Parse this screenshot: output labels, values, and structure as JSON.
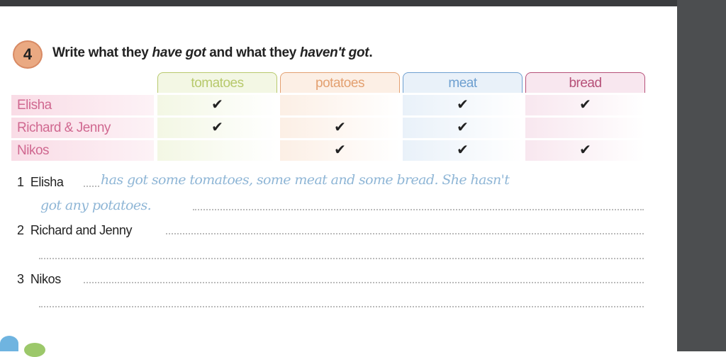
{
  "exercise": {
    "number": "4",
    "title_parts": [
      "Write what they ",
      "have got",
      " and what they ",
      "haven't got",
      "."
    ]
  },
  "table": {
    "columns": [
      {
        "label": "tomatoes",
        "color": "#b7c96c",
        "bg": "#f3f7e4"
      },
      {
        "label": "potatoes",
        "color": "#e3a070",
        "bg": "#fcefe5"
      },
      {
        "label": "meat",
        "color": "#6d9fd0",
        "bg": "#e9f1f9"
      },
      {
        "label": "bread",
        "color": "#b65078",
        "bg": "#f8e7ef"
      }
    ],
    "rows": [
      {
        "name": "Elisha",
        "checks": [
          true,
          false,
          true,
          true
        ]
      },
      {
        "name": "Richard & Jenny",
        "checks": [
          true,
          true,
          true,
          false
        ]
      },
      {
        "name": "Nikos",
        "checks": [
          false,
          true,
          true,
          true
        ]
      }
    ],
    "check_mark": "✔"
  },
  "sentences": [
    {
      "number": "1",
      "subject": "Elisha",
      "answer_line1": "has got some tomatoes, some meat and some bread. She hasn't",
      "answer_line2": "got any potatoes."
    },
    {
      "number": "2",
      "subject": "Richard and Jenny"
    },
    {
      "number": "3",
      "subject": "Nikos"
    }
  ]
}
